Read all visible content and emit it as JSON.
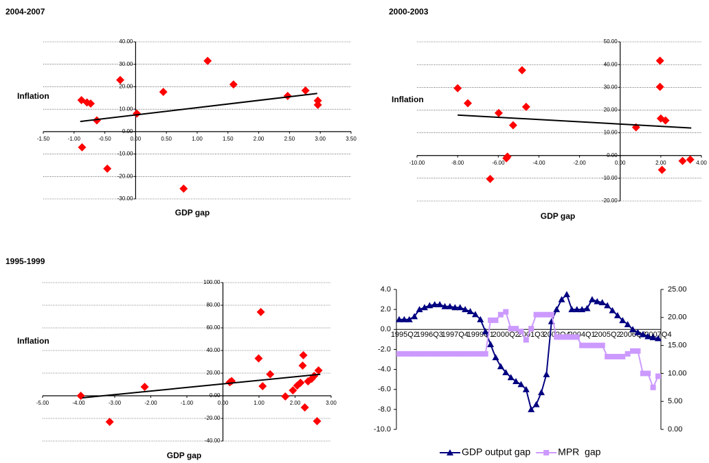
{
  "chart_data": [
    {
      "type": "scatter",
      "title": "2004-2007",
      "x_label": "GDP gap",
      "y_label": "Inflation",
      "color": "#ff0000",
      "grid": true,
      "x": [
        -0.88,
        -0.79,
        -0.73,
        -0.63,
        -0.87,
        -0.46,
        -0.25,
        0.02,
        0.45,
        0.78,
        1.17,
        1.59,
        2.47,
        2.76,
        2.96,
        2.96
      ],
      "values": [
        14,
        13,
        12.5,
        5,
        -7,
        -16.5,
        23,
        8,
        17.7,
        -25.4,
        31.5,
        21,
        15.9,
        18.3,
        13.8,
        11.9
      ],
      "trendline": {
        "x": [
          -0.9,
          2.95
        ],
        "values": [
          4.5,
          17
        ]
      },
      "xlim": [
        -1.5,
        3.5
      ],
      "ylim": [
        -30,
        40
      ],
      "xticks": [
        {
          "value": -1.5,
          "label": "-1.50"
        },
        {
          "value": -1,
          "label": "-1.00"
        },
        {
          "value": -0.5,
          "label": "-0.50"
        },
        {
          "value": 0,
          "label": "0.00"
        },
        {
          "value": 0.5,
          "label": "0.50"
        },
        {
          "value": 1,
          "label": "1.00"
        },
        {
          "value": 1.5,
          "label": "1.50"
        },
        {
          "value": 2,
          "label": "2.00"
        },
        {
          "value": 2.5,
          "label": "2.50"
        },
        {
          "value": 3,
          "label": "3.00"
        },
        {
          "value": 3.5,
          "label": "3.50"
        }
      ],
      "yticks": [
        {
          "value": -30,
          "label": "-30.00"
        },
        {
          "value": -20,
          "label": "-20.00"
        },
        {
          "value": -10,
          "label": "-10.00"
        },
        {
          "value": 0,
          "label": "0.00"
        },
        {
          "value": 10,
          "label": "10.00"
        },
        {
          "value": 20,
          "label": "20.00"
        },
        {
          "value": 30,
          "label": "30.00"
        },
        {
          "value": 40,
          "label": "40.00"
        }
      ]
    },
    {
      "type": "scatter",
      "title": "2000-2003",
      "x_label": "GDP gap",
      "y_label": "Inflation",
      "color": "#ff0000",
      "grid": true,
      "x": [
        -8.0,
        -7.5,
        -5.98,
        -6.4,
        -5.6,
        -5.55,
        -5.27,
        -4.83,
        -4.63,
        0.78,
        1.96,
        1.96,
        2.0,
        2.23,
        2.06,
        3.07,
        3.45
      ],
      "values": [
        29.6,
        23,
        18.7,
        -10.3,
        -1.2,
        -0.5,
        13.3,
        37.5,
        21.4,
        12.4,
        41.7,
        30.2,
        16.3,
        15.4,
        -6.3,
        -2.4,
        -1.8
      ],
      "trendline": {
        "x": [
          -8.0,
          3.5
        ],
        "values": [
          17.8,
          12.1
        ]
      },
      "xlim": [
        -10,
        4
      ],
      "ylim": [
        -20,
        50
      ],
      "xticks": [
        {
          "value": -10,
          "label": "-10.00"
        },
        {
          "value": -8,
          "label": "-8.00"
        },
        {
          "value": -6,
          "label": "-6.00"
        },
        {
          "value": -4,
          "label": "-4.00"
        },
        {
          "value": -2,
          "label": "-2.00"
        },
        {
          "value": 0,
          "label": "0.00"
        },
        {
          "value": 2,
          "label": "2.00"
        },
        {
          "value": 4,
          "label": "4.00"
        }
      ],
      "yticks": [
        {
          "value": -20,
          "label": "-20.00"
        },
        {
          "value": -10,
          "label": "-10.00"
        },
        {
          "value": 0,
          "label": "0.00"
        },
        {
          "value": 10,
          "label": "10.00"
        },
        {
          "value": 20,
          "label": "20.00"
        },
        {
          "value": 30,
          "label": "30.00"
        },
        {
          "value": 40,
          "label": "40.00"
        },
        {
          "value": 50,
          "label": "50.00"
        }
      ]
    },
    {
      "type": "scatter",
      "title": "1995-1999",
      "x_label": "GDP gap",
      "y_label": "Inflation",
      "color": "#ff0000",
      "grid": true,
      "x": [
        -3.94,
        -3.14,
        -2.17,
        0.19,
        0.24,
        1.05,
        0.99,
        1.1,
        1.31,
        1.73,
        1.94,
        2.06,
        2.15,
        2.23,
        2.21,
        2.27,
        2.36,
        2.46,
        2.53,
        2.61,
        2.65
      ],
      "values": [
        0,
        -23,
        7.9,
        12,
        13,
        74,
        33,
        8.5,
        19,
        -0.6,
        4.8,
        9,
        11.5,
        35.8,
        26.7,
        -10.3,
        12.7,
        15,
        17.6,
        -22.4,
        22.4
      ],
      "trendline": {
        "x": [
          -3.9,
          2.7
        ],
        "values": [
          -1.8,
          19
        ]
      },
      "xlim": [
        -5,
        3
      ],
      "ylim": [
        -40,
        100
      ],
      "xticks": [
        {
          "value": -5,
          "label": "-5.00"
        },
        {
          "value": -4,
          "label": "-4.00"
        },
        {
          "value": -3,
          "label": "-3.00"
        },
        {
          "value": -2,
          "label": "-2.00"
        },
        {
          "value": -1,
          "label": "-1.00"
        },
        {
          "value": 0,
          "label": "0.00"
        },
        {
          "value": 1,
          "label": "1.00"
        },
        {
          "value": 2,
          "label": "2.00"
        },
        {
          "value": 3,
          "label": "3.00"
        }
      ],
      "yticks": [
        {
          "value": -40,
          "label": "-40.00"
        },
        {
          "value": -20,
          "label": "-20.00"
        },
        {
          "value": 0,
          "label": "0.00"
        },
        {
          "value": 20,
          "label": "20.00"
        },
        {
          "value": 40,
          "label": "40.00"
        },
        {
          "value": 60,
          "label": "60.00"
        },
        {
          "value": 80,
          "label": "80.00"
        },
        {
          "value": 100,
          "label": "100.00"
        }
      ]
    },
    {
      "type": "line",
      "legend": "bottom",
      "categories": [
        null,
        "1995Q2",
        null,
        null,
        null,
        null,
        "1996Q3",
        null,
        null,
        null,
        null,
        "1997Q4",
        null,
        null,
        null,
        null,
        "1999Q1",
        null,
        null,
        null,
        null,
        "2000Q2",
        null,
        null,
        null,
        null,
        "2001Q3",
        null,
        null,
        null,
        null,
        "2002Q4",
        null,
        null,
        null,
        null,
        "2004Q1",
        null,
        null,
        null,
        null,
        "2005Q2",
        null,
        null,
        null,
        null,
        "2006Q3",
        null,
        null,
        null,
        null,
        "2007Q4"
      ],
      "series": [
        {
          "name": "GDP output gap",
          "color": "#000080",
          "marker": "triangle",
          "values": [
            1.0,
            1.0,
            1.0,
            1.3,
            2.0,
            2.2,
            2.4,
            2.5,
            2.5,
            2.3,
            2.3,
            2.2,
            2.2,
            2.0,
            1.8,
            1.5,
            1.0,
            -0.2,
            -1.5,
            -2.8,
            -3.7,
            -4.3,
            -4.8,
            -5.2,
            -5.5,
            -6.0,
            -8.0,
            -7.5,
            -6.3,
            -4.5,
            0.8,
            2.0,
            3.0,
            3.5,
            2.0,
            2.0,
            2.0,
            2.1,
            3.0,
            2.8,
            2.7,
            2.4,
            1.9,
            1.4,
            0.9,
            0.5,
            0.0,
            -0.3,
            -0.5,
            -0.7,
            -0.8,
            -0.9
          ]
        },
        {
          "name": "MPR  gap",
          "color": "#cc99ff",
          "marker": "square",
          "axis": "y2",
          "values": [
            13.5,
            13.5,
            13.5,
            13.5,
            13.5,
            13.5,
            13.5,
            13.5,
            13.5,
            13.5,
            13.5,
            13.5,
            13.5,
            13.5,
            13.5,
            13.5,
            13.5,
            13.5,
            19.5,
            19.5,
            20.5,
            21.0,
            18.0,
            18.0,
            17.5,
            16.0,
            18.0,
            20.5,
            20.5,
            20.5,
            20.5,
            16.5,
            16.5,
            16.5,
            16.5,
            16.5,
            15.0,
            15.0,
            15.0,
            15.0,
            15.0,
            13.0,
            13.0,
            13.0,
            13.0,
            13.5,
            14.0,
            14.0,
            10.0,
            10.0,
            7.5,
            9.5
          ]
        }
      ],
      "ylim": [
        -10,
        4
      ],
      "y2lim": [
        0,
        25
      ],
      "yticks": [
        {
          "value": -10,
          "label": "-10.0"
        },
        {
          "value": -8,
          "label": "-8.0"
        },
        {
          "value": -6,
          "label": "-6.0"
        },
        {
          "value": -4,
          "label": "-4.0"
        },
        {
          "value": -2,
          "label": "-2.0"
        },
        {
          "value": 0,
          "label": "0.0"
        },
        {
          "value": 2,
          "label": "2.0"
        },
        {
          "value": 4,
          "label": "4.0"
        }
      ],
      "y2ticks": [
        {
          "value": 0,
          "label": "0.00"
        },
        {
          "value": 5,
          "label": "5.00"
        },
        {
          "value": 10,
          "label": "10.00"
        },
        {
          "value": 15,
          "label": "15.00"
        },
        {
          "value": 20,
          "label": "20.00"
        },
        {
          "value": 25,
          "label": "25.00"
        }
      ]
    }
  ]
}
